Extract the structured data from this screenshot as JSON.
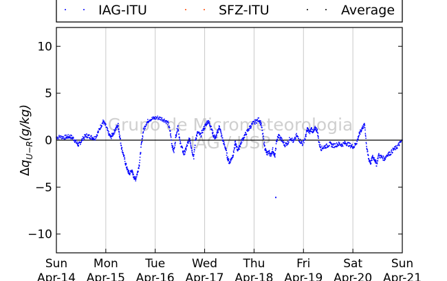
{
  "chart_data": {
    "type": "scatter",
    "ylabel": "Δq_{U−R}(g/kg)",
    "ylabel_parts": {
      "delta": "Δ",
      "base": "q",
      "sub": "U−R",
      "unit": "(g/kg)"
    },
    "ylim": [
      -12,
      12
    ],
    "yticks": [
      10,
      5,
      0,
      -5,
      -10
    ],
    "ytick_labels": [
      "10",
      "5",
      "0",
      "−5",
      "−10"
    ],
    "x_axis": {
      "start": "2013-04-14",
      "end": "2013-04-21",
      "tick_days": [
        "Sun",
        "Mon",
        "Tue",
        "Wed",
        "Thu",
        "Fri",
        "Sat",
        "Sun"
      ],
      "tick_dates": [
        "Apr-14",
        "Apr-15",
        "Apr-16",
        "Apr-17",
        "Apr-18",
        "Apr-19",
        "Apr-20",
        "Apr-21"
      ]
    },
    "grid": {
      "vertical": true,
      "horizontal": false
    },
    "zero_line": true,
    "legend": {
      "placement": "top",
      "entries": [
        {
          "name": "IAG-ITU",
          "color": "#0000ff"
        },
        {
          "name": "SFZ-ITU",
          "color": "#ff4500"
        },
        {
          "name": "Average",
          "color": "#000000"
        }
      ]
    },
    "watermark": {
      "line1": "Grupo de Micrometeorologia",
      "line2": "IAG / USP"
    },
    "series": [
      {
        "name": "IAG-ITU",
        "color": "#0000ff",
        "x_unit": "days since Apr-14 00:00",
        "points": [
          [
            0.0,
            0.3
          ],
          [
            0.08,
            0.35
          ],
          [
            0.16,
            0.3
          ],
          [
            0.22,
            0.35
          ],
          [
            0.28,
            0.4
          ],
          [
            0.34,
            0.2
          ],
          [
            0.4,
            -0.2
          ],
          [
            0.44,
            -0.5
          ],
          [
            0.48,
            -0.3
          ],
          [
            0.54,
            0.2
          ],
          [
            0.6,
            0.5
          ],
          [
            0.66,
            0.4
          ],
          [
            0.72,
            0.3
          ],
          [
            0.78,
            0.2
          ],
          [
            0.84,
            0.8
          ],
          [
            0.9,
            1.5
          ],
          [
            0.95,
            2.0
          ],
          [
            1.0,
            1.5
          ],
          [
            1.05,
            0.8
          ],
          [
            1.1,
            0.3
          ],
          [
            1.15,
            0.7
          ],
          [
            1.2,
            1.2
          ],
          [
            1.25,
            1.6
          ],
          [
            1.28,
            0.5
          ],
          [
            1.32,
            -0.8
          ],
          [
            1.36,
            -1.6
          ],
          [
            1.4,
            -2.5
          ],
          [
            1.44,
            -3.2
          ],
          [
            1.48,
            -3.6
          ],
          [
            1.52,
            -3.2
          ],
          [
            1.56,
            -3.8
          ],
          [
            1.6,
            -4.2
          ],
          [
            1.64,
            -3.5
          ],
          [
            1.68,
            -2.5
          ],
          [
            1.72,
            -0.5
          ],
          [
            1.76,
            1.0
          ],
          [
            1.82,
            1.8
          ],
          [
            1.88,
            2.2
          ],
          [
            1.96,
            2.3
          ],
          [
            2.04,
            2.4
          ],
          [
            2.12,
            2.3
          ],
          [
            2.2,
            2.1
          ],
          [
            2.26,
            1.8
          ],
          [
            2.3,
            1.0
          ],
          [
            2.34,
            -0.5
          ],
          [
            2.38,
            -1.2
          ],
          [
            2.42,
            0.5
          ],
          [
            2.46,
            1.5
          ],
          [
            2.5,
            -0.2
          ],
          [
            2.54,
            -0.8
          ],
          [
            2.58,
            -1.5
          ],
          [
            2.62,
            -1.0
          ],
          [
            2.66,
            -0.3
          ],
          [
            2.7,
            0.2
          ],
          [
            2.74,
            -1.0
          ],
          [
            2.78,
            -1.8
          ],
          [
            2.82,
            0.2
          ],
          [
            2.86,
            0.8
          ],
          [
            2.92,
            0.5
          ],
          [
            2.98,
            1.2
          ],
          [
            3.02,
            1.6
          ],
          [
            3.06,
            2.0
          ],
          [
            3.1,
            1.8
          ],
          [
            3.14,
            1.2
          ],
          [
            3.18,
            0.5
          ],
          [
            3.22,
            0.2
          ],
          [
            3.26,
            0.8
          ],
          [
            3.3,
            1.5
          ],
          [
            3.34,
            0.5
          ],
          [
            3.38,
            -0.2
          ],
          [
            3.42,
            -0.8
          ],
          [
            3.46,
            -1.8
          ],
          [
            3.5,
            -2.4
          ],
          [
            3.54,
            -2.0
          ],
          [
            3.58,
            -1.5
          ],
          [
            3.62,
            -0.3
          ],
          [
            3.66,
            -1.0
          ],
          [
            3.7,
            -0.8
          ],
          [
            3.74,
            -0.2
          ],
          [
            3.8,
            0.4
          ],
          [
            3.86,
            0.9
          ],
          [
            3.92,
            1.4
          ],
          [
            3.98,
            1.8
          ],
          [
            4.04,
            2.0
          ],
          [
            4.1,
            2.2
          ],
          [
            4.14,
            1.8
          ],
          [
            4.18,
            0.5
          ],
          [
            4.22,
            -0.8
          ],
          [
            4.26,
            -1.5
          ],
          [
            4.3,
            -1.2
          ],
          [
            4.34,
            -1.6
          ],
          [
            4.38,
            -1.0
          ],
          [
            4.42,
            -1.8
          ],
          [
            4.46,
            0.0
          ],
          [
            4.5,
            0.5
          ],
          [
            4.56,
            0.0
          ],
          [
            4.62,
            -0.5
          ],
          [
            4.68,
            -0.3
          ],
          [
            4.74,
            0.3
          ],
          [
            4.8,
            -0.2
          ],
          [
            4.86,
            0.5
          ],
          [
            4.92,
            0.0
          ],
          [
            4.98,
            -0.4
          ],
          [
            5.04,
            0.3
          ],
          [
            5.08,
            1.2
          ],
          [
            5.12,
            0.8
          ],
          [
            5.16,
            1.2
          ],
          [
            5.2,
            0.8
          ],
          [
            5.24,
            1.3
          ],
          [
            5.28,
            1.0
          ],
          [
            5.32,
            -0.4
          ],
          [
            5.36,
            -0.9
          ],
          [
            5.42,
            -0.7
          ],
          [
            5.48,
            -0.6
          ],
          [
            5.54,
            -0.4
          ],
          [
            5.6,
            -0.6
          ],
          [
            5.66,
            -0.5
          ],
          [
            5.72,
            -0.4
          ],
          [
            5.78,
            -0.5
          ],
          [
            5.84,
            -0.3
          ],
          [
            5.9,
            -0.4
          ],
          [
            5.96,
            -0.6
          ],
          [
            6.02,
            -0.7
          ],
          [
            6.08,
            -0.2
          ],
          [
            6.12,
            0.5
          ],
          [
            6.16,
            1.0
          ],
          [
            6.2,
            1.4
          ],
          [
            6.24,
            1.6
          ],
          [
            6.28,
            -0.8
          ],
          [
            6.32,
            -2.0
          ],
          [
            6.36,
            -2.4
          ],
          [
            6.4,
            -1.8
          ],
          [
            6.44,
            -2.0
          ],
          [
            6.48,
            -2.6
          ],
          [
            6.52,
            -1.6
          ],
          [
            6.58,
            -1.8
          ],
          [
            6.64,
            -2.0
          ],
          [
            6.7,
            -1.5
          ],
          [
            6.76,
            -1.4
          ],
          [
            6.82,
            -1.0
          ],
          [
            6.88,
            -0.8
          ],
          [
            6.94,
            -0.4
          ],
          [
            7.0,
            0.0
          ]
        ],
        "outliers": [
          [
            4.44,
            -6.1
          ]
        ]
      }
    ]
  }
}
